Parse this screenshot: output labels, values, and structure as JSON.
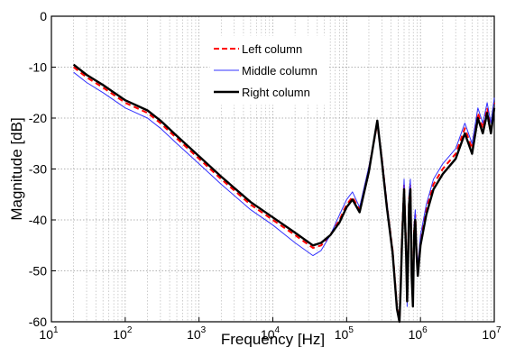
{
  "chart_data": {
    "type": "line",
    "title": "",
    "xlabel": "Frequency [Hz]",
    "ylabel": "Magnitude [dB]",
    "xscale": "log",
    "xlim": [
      10,
      10000000
    ],
    "ylim": [
      -60,
      0
    ],
    "grid": "on (dotted, minor log grid on x)",
    "legend_position": "top-center",
    "x_ticks": [
      {
        "base": "10",
        "exp": "1"
      },
      {
        "base": "10",
        "exp": "2"
      },
      {
        "base": "10",
        "exp": "3"
      },
      {
        "base": "10",
        "exp": "4"
      },
      {
        "base": "10",
        "exp": "5"
      },
      {
        "base": "10",
        "exp": "6"
      },
      {
        "base": "10",
        "exp": "7"
      }
    ],
    "y_ticks": [
      "0",
      "-10",
      "-20",
      "-30",
      "-40",
      "-50",
      "-60"
    ],
    "series": [
      {
        "name": "Left column",
        "color": "#ff0000",
        "style": "dashed",
        "x": [
          20,
          30,
          50,
          100,
          200,
          300,
          500,
          1000,
          2000,
          5000,
          10000,
          20000,
          35000,
          45000,
          60000,
          80000,
          100000,
          120000,
          150000,
          200000,
          260000,
          300000,
          350000,
          420000,
          480000,
          520000,
          540000,
          560000,
          600000,
          640000,
          660000,
          680000,
          700000,
          730000,
          760000,
          790000,
          820000,
          850000,
          880000,
          920000,
          1000000,
          1200000,
          1500000,
          2000000,
          3000000,
          4000000,
          5000000,
          6000000,
          7000000,
          8000000,
          9000000,
          10000000
        ],
        "y": [
          -10,
          -12,
          -14,
          -17,
          -19,
          -21,
          -24,
          -28,
          -32,
          -37,
          -40,
          -43,
          -45.5,
          -45,
          -43,
          -40,
          -37,
          -35.5,
          -38,
          -30,
          -21,
          -28,
          -37,
          -46,
          -57,
          -60,
          -52,
          -44,
          -33,
          -46,
          -56,
          -47,
          -36,
          -33,
          -50,
          -56,
          -42,
          -39,
          -45,
          -50,
          -44,
          -38,
          -33,
          -30,
          -27,
          -22,
          -26,
          -19,
          -22,
          -18,
          -22,
          -17
        ]
      },
      {
        "name": "Middle column",
        "color": "#3333ff",
        "style": "solid-thin",
        "x": [
          20,
          30,
          50,
          100,
          200,
          300,
          500,
          1000,
          2000,
          5000,
          10000,
          20000,
          35000,
          45000,
          60000,
          80000,
          100000,
          120000,
          150000,
          200000,
          260000,
          300000,
          350000,
          420000,
          480000,
          520000,
          540000,
          560000,
          600000,
          640000,
          660000,
          680000,
          700000,
          730000,
          760000,
          790000,
          820000,
          850000,
          880000,
          920000,
          1000000,
          1200000,
          1500000,
          2000000,
          3000000,
          4000000,
          5000000,
          6000000,
          7000000,
          8000000,
          9000000,
          10000000
        ],
        "y": [
          -11,
          -13,
          -15,
          -18,
          -20,
          -22,
          -25,
          -29,
          -33,
          -38,
          -41,
          -44.5,
          -47,
          -46,
          -43,
          -39,
          -36,
          -34.5,
          -37.5,
          -29.5,
          -21,
          -27.5,
          -36.5,
          -46,
          -57,
          -60,
          -51,
          -43,
          -32,
          -45,
          -57,
          -46,
          -35,
          -32,
          -50,
          -56,
          -41,
          -38,
          -44,
          -49,
          -43,
          -37,
          -32,
          -29,
          -26,
          -21,
          -25,
          -18,
          -21,
          -17,
          -21,
          -16
        ]
      },
      {
        "name": "Right column",
        "color": "#000000",
        "style": "solid-thick",
        "x": [
          20,
          30,
          50,
          100,
          200,
          300,
          500,
          1000,
          2000,
          5000,
          10000,
          20000,
          35000,
          45000,
          60000,
          80000,
          100000,
          120000,
          150000,
          200000,
          260000,
          300000,
          350000,
          420000,
          480000,
          520000,
          540000,
          560000,
          600000,
          640000,
          660000,
          680000,
          700000,
          730000,
          760000,
          790000,
          820000,
          850000,
          880000,
          920000,
          1000000,
          1200000,
          1500000,
          2000000,
          3000000,
          4000000,
          5000000,
          6000000,
          7000000,
          8000000,
          9000000,
          10000000
        ],
        "y": [
          -9.5,
          -11.5,
          -13.5,
          -16.5,
          -18.5,
          -20.5,
          -23.5,
          -27.5,
          -31.5,
          -36.5,
          -39.5,
          -42.5,
          -45,
          -44.5,
          -43,
          -40.5,
          -37.5,
          -36,
          -38.5,
          -30.5,
          -20.5,
          -28.5,
          -37.5,
          -46.5,
          -57.5,
          -60,
          -53,
          -45,
          -34,
          -47,
          -56,
          -48,
          -37,
          -34,
          -51,
          -57,
          -43,
          -40,
          -46,
          -51,
          -45,
          -39,
          -34,
          -31,
          -28,
          -23,
          -27,
          -20,
          -23,
          -19,
          -23,
          -18
        ]
      }
    ]
  }
}
